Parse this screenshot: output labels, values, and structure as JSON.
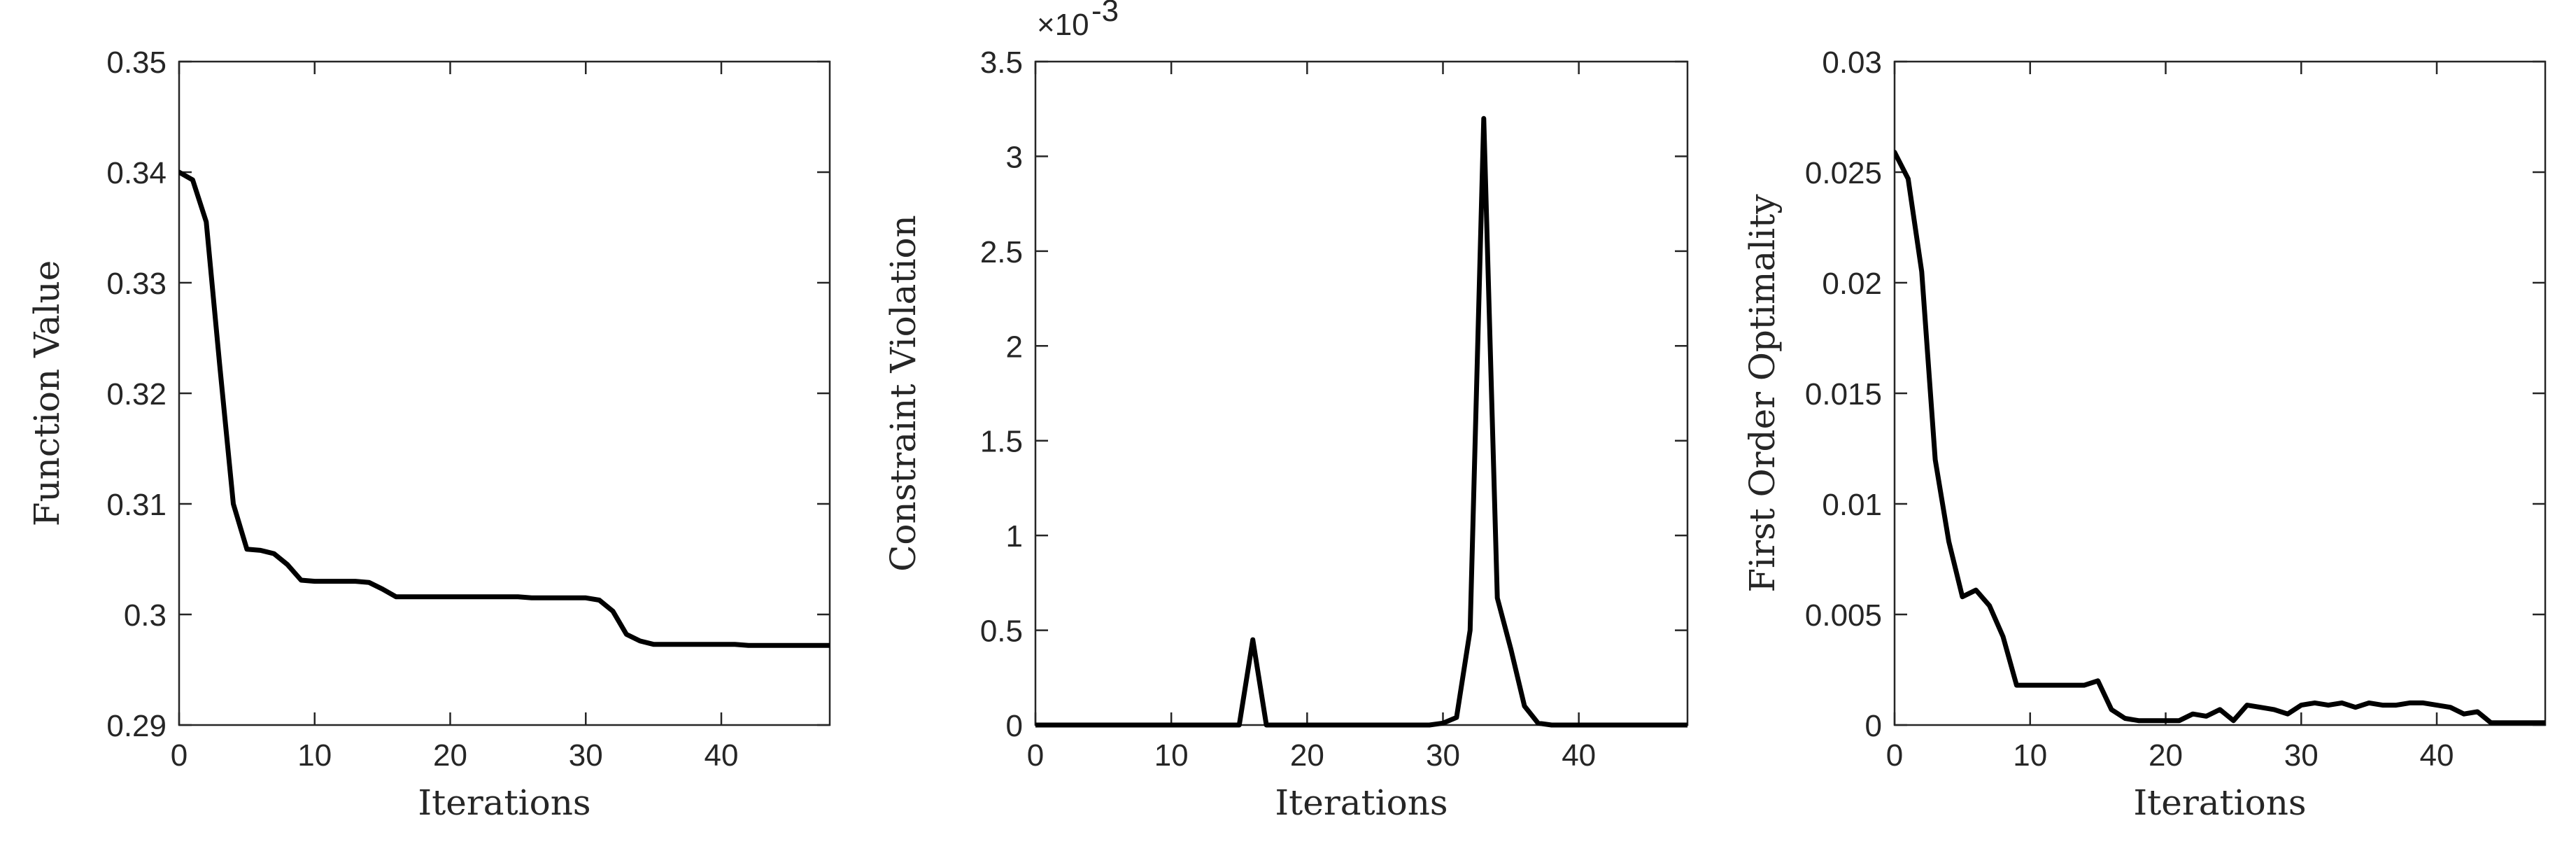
{
  "chart_data": [
    {
      "type": "line",
      "xlabel": "Iterations",
      "ylabel": "Function Value",
      "xlim": [
        0,
        48
      ],
      "ylim": [
        0.29,
        0.35
      ],
      "xticks": [
        0,
        10,
        20,
        30,
        40
      ],
      "xtick_labels": [
        "0",
        "10",
        "20",
        "30",
        "40"
      ],
      "yticks": [
        0.29,
        0.3,
        0.31,
        0.32,
        0.33,
        0.34,
        0.35
      ],
      "ytick_labels": [
        "0.29",
        "0.3",
        "0.31",
        "0.32",
        "0.33",
        "0.34",
        "0.35"
      ],
      "exponent_label": "",
      "grid": false,
      "line_color": "#000000",
      "series": [
        {
          "x": [
            0,
            1,
            2,
            3,
            4,
            5,
            6,
            7,
            8,
            9,
            10,
            11,
            12,
            13,
            14,
            15,
            16,
            17,
            18,
            19,
            20,
            21,
            22,
            23,
            24,
            25,
            26,
            27,
            28,
            29,
            30,
            31,
            32,
            33,
            34,
            35,
            36,
            37,
            38,
            39,
            40,
            41,
            42,
            43,
            44,
            45,
            46,
            47,
            48
          ],
          "y": [
            0.34,
            0.3393,
            0.3355,
            0.3225,
            0.31,
            0.3059,
            0.3058,
            0.3055,
            0.3045,
            0.3031,
            0.303,
            0.303,
            0.303,
            0.303,
            0.3029,
            0.3023,
            0.3016,
            0.3016,
            0.3016,
            0.3016,
            0.3016,
            0.3016,
            0.3016,
            0.3016,
            0.3016,
            0.3016,
            0.3015,
            0.3015,
            0.3015,
            0.3015,
            0.3015,
            0.3013,
            0.3003,
            0.2982,
            0.2976,
            0.2973,
            0.2973,
            0.2973,
            0.2973,
            0.2973,
            0.2973,
            0.2973,
            0.2972,
            0.2972,
            0.2972,
            0.2972,
            0.2972,
            0.2972,
            0.2972
          ]
        }
      ]
    },
    {
      "type": "line",
      "xlabel": "Iterations",
      "ylabel": "Constraint Violation",
      "xlim": [
        0,
        48
      ],
      "ylim": [
        0,
        3.5
      ],
      "xticks": [
        0,
        10,
        20,
        30,
        40
      ],
      "xtick_labels": [
        "0",
        "10",
        "20",
        "30",
        "40"
      ],
      "yticks": [
        0,
        0.5,
        1,
        1.5,
        2,
        2.5,
        3,
        3.5
      ],
      "ytick_labels": [
        "0",
        "0.5",
        "1",
        "1.5",
        "2",
        "2.5",
        "3",
        "3.5"
      ],
      "exponent_label": "×10",
      "exponent_power": "-3",
      "grid": false,
      "line_color": "#000000",
      "series": [
        {
          "x": [
            0,
            1,
            2,
            3,
            4,
            5,
            6,
            7,
            8,
            9,
            10,
            11,
            12,
            13,
            14,
            15,
            16,
            17,
            18,
            19,
            20,
            21,
            22,
            23,
            24,
            25,
            26,
            27,
            28,
            29,
            30,
            31,
            32,
            33,
            34,
            35,
            36,
            37,
            38,
            39,
            40,
            41,
            42,
            43,
            44,
            45,
            46,
            47,
            48
          ],
          "y": [
            0,
            0,
            0,
            0,
            0,
            0,
            0,
            0,
            0,
            0,
            0,
            0,
            0,
            0,
            0,
            0,
            0.45,
            0,
            0,
            0,
            0,
            0,
            0,
            0,
            0,
            0,
            0,
            0,
            0,
            0,
            0.01,
            0.04,
            0.5,
            3.2,
            0.67,
            0.4,
            0.1,
            0.01,
            0,
            0,
            0,
            0,
            0,
            0,
            0,
            0,
            0,
            0,
            0
          ]
        }
      ]
    },
    {
      "type": "line",
      "xlabel": "Iterations",
      "ylabel": "First Order Optimality",
      "xlim": [
        0,
        48
      ],
      "ylim": [
        0,
        0.03
      ],
      "xticks": [
        0,
        10,
        20,
        30,
        40
      ],
      "xtick_labels": [
        "0",
        "10",
        "20",
        "30",
        "40"
      ],
      "yticks": [
        0,
        0.005,
        0.01,
        0.015,
        0.02,
        0.025,
        0.03
      ],
      "ytick_labels": [
        "0",
        "0.005",
        "0.01",
        "0.015",
        "0.02",
        "0.025",
        "0.03"
      ],
      "exponent_label": "",
      "grid": false,
      "line_color": "#000000",
      "series": [
        {
          "x": [
            0,
            1,
            2,
            3,
            4,
            5,
            6,
            7,
            8,
            9,
            10,
            11,
            12,
            13,
            14,
            15,
            16,
            17,
            18,
            19,
            20,
            21,
            22,
            23,
            24,
            25,
            26,
            27,
            28,
            29,
            30,
            31,
            32,
            33,
            34,
            35,
            36,
            37,
            38,
            39,
            40,
            41,
            42,
            43,
            44,
            45,
            46,
            47,
            48
          ],
          "y": [
            0.0259,
            0.0247,
            0.0205,
            0.012,
            0.0083,
            0.0058,
            0.0061,
            0.0054,
            0.004,
            0.0018,
            0.0018,
            0.0018,
            0.0018,
            0.0018,
            0.0018,
            0.002,
            0.0007,
            0.0003,
            0.0002,
            0.0002,
            0.0002,
            0.0002,
            0.0005,
            0.0004,
            0.0007,
            0.0002,
            0.0009,
            0.0008,
            0.0007,
            0.0005,
            0.0009,
            0.001,
            0.0009,
            0.001,
            0.0008,
            0.001,
            0.0009,
            0.0009,
            0.001,
            0.001,
            0.0009,
            0.0008,
            0.0005,
            0.0006,
            0.0001,
            0.0001,
            0.0001,
            0.0001,
            0.0001
          ]
        }
      ]
    }
  ]
}
